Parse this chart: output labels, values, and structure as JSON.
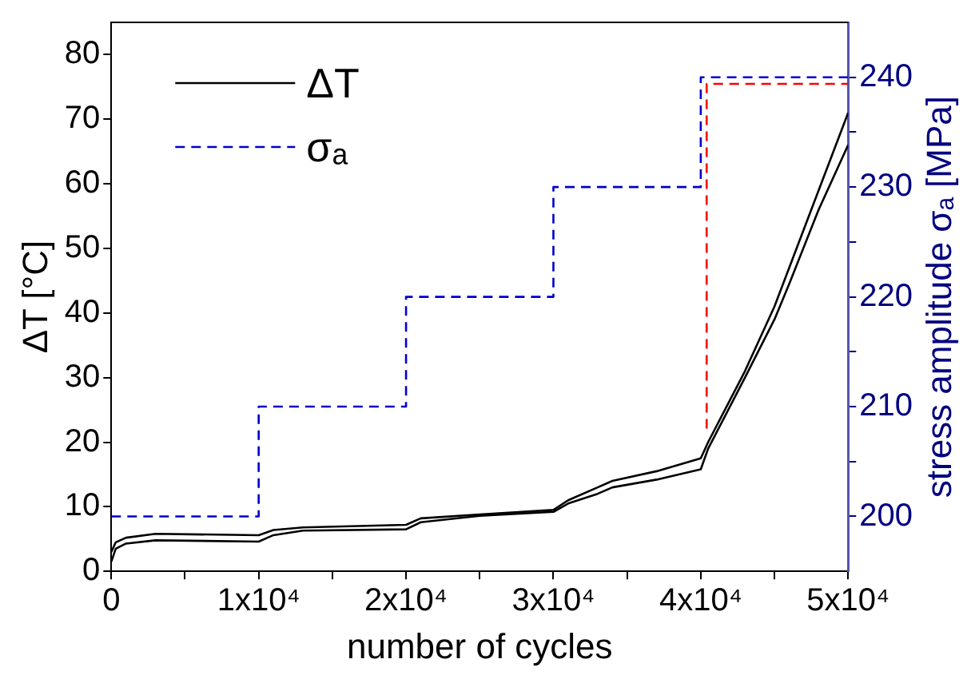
{
  "chart_data": {
    "type": "line",
    "xlabel": "number of cycles",
    "ylabel": "ΔT [°C]",
    "y2label": "stress amplitude σₐ [MPa]",
    "xlim": [
      0,
      50000
    ],
    "xticks": [
      0,
      {
        "value": 5000,
        "label": null
      },
      {
        "value": 10000,
        "label": "1x10⁴"
      },
      {
        "value": 15000,
        "label": null
      },
      {
        "value": 20000,
        "label": "2x10⁴"
      },
      {
        "value": 25000,
        "label": null
      },
      {
        "value": 30000,
        "label": "3x10⁴"
      },
      {
        "value": 35000,
        "label": null
      },
      {
        "value": 40000,
        "label": "4x10⁴"
      },
      {
        "value": 45000,
        "label": null
      },
      {
        "value": 50000,
        "label": "5x10⁴"
      }
    ],
    "ylim": [
      0,
      85
    ],
    "yticks": [
      0,
      10,
      20,
      30,
      40,
      50,
      60,
      70,
      80
    ],
    "y2lim": [
      195,
      245
    ],
    "y2ticks": [
      200,
      {
        "value": 205,
        "label": null
      },
      210,
      {
        "value": 215,
        "label": null
      },
      220,
      {
        "value": 225,
        "label": null
      },
      230,
      {
        "value": 235,
        "label": null
      },
      240
    ],
    "grid": false,
    "legend": "top left",
    "marker": "none",
    "series": [
      {
        "name": "ΔT",
        "color": "#000000",
        "line_style": "solid",
        "x": [
          0,
          300,
          1000,
          3000,
          10000,
          11000,
          13000,
          20000,
          21000,
          25000,
          30000,
          31000,
          33000,
          34000,
          37000,
          40000,
          40500,
          43000,
          45000,
          46000,
          48000,
          50000
        ],
        "values": [
          3,
          4.5,
          5.2,
          5.8,
          5.6,
          6.4,
          6.8,
          7.2,
          8.2,
          8.8,
          9.5,
          11,
          13,
          14,
          15.5,
          17.5,
          20,
          31,
          41,
          47,
          59,
          71
        ]
      },
      {
        "color": "#000000",
        "line_style": "solid",
        "x": [
          0,
          300,
          1000,
          3000,
          10000,
          11000,
          13000,
          20000,
          21000,
          25000,
          30000,
          31000,
          33000,
          34000,
          37000,
          40000,
          40500,
          43000,
          45000,
          46000,
          48000,
          50000
        ],
        "values": [
          1.5,
          3.5,
          4.3,
          4.8,
          4.6,
          5.6,
          6.3,
          6.5,
          7.6,
          8.6,
          9.2,
          10.5,
          12,
          13,
          14.2,
          15.8,
          19,
          30,
          39,
          44.5,
          56,
          66
        ]
      },
      {
        "name": "σₐ",
        "type": "step",
        "axis": "y2",
        "color": "#0000cc",
        "line_style": "dashed",
        "x": [
          0,
          10000,
          20000,
          30000,
          40000,
          50000
        ],
        "values": [
          200,
          210,
          220,
          230,
          240,
          240
        ]
      },
      {
        "type": "step",
        "axis": "y2",
        "color": "#ff0000",
        "line_style": "dashed",
        "x": [
          40400,
          40400,
          50000
        ],
        "values": [
          208,
          239.4,
          239.4
        ]
      }
    ]
  }
}
